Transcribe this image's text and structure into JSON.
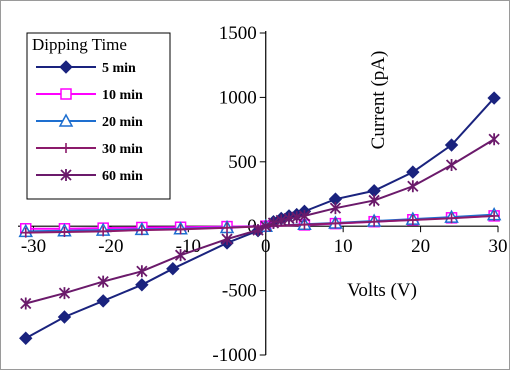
{
  "chart_data": {
    "type": "line",
    "xlabel": "Volts (V)",
    "ylabel": "Current (pA)",
    "xlim": [
      -32,
      30
    ],
    "ylim": [
      -1000,
      1500
    ],
    "x_ticks": [
      -30,
      -20,
      -10,
      0,
      10,
      20,
      30
    ],
    "y_ticks": [
      -1000,
      -500,
      0,
      500,
      1000,
      1500
    ],
    "x_tick_labels": [
      "-30",
      "-20",
      "-10",
      "0",
      "10",
      "20",
      "30"
    ],
    "y_tick_labels": [
      "-1000",
      "-500",
      "0",
      "500",
      "1000",
      "1500"
    ],
    "grid": false,
    "legend_title": "Dipping Time",
    "legend_position": "top-left",
    "series": [
      {
        "name": "5 min",
        "color": "#1a237e",
        "marker": "diamond",
        "x": [
          -31,
          -26,
          -21,
          -16,
          -12,
          -5,
          -1,
          0,
          1,
          2,
          3,
          4,
          5,
          9,
          14,
          19,
          24,
          29.5
        ],
        "y": [
          -870,
          -705,
          -580,
          -455,
          -330,
          -130,
          -35,
          0,
          35,
          60,
          80,
          90,
          115,
          210,
          275,
          420,
          630,
          995
        ]
      },
      {
        "name": "10 min",
        "color": "#ff00ff",
        "marker": "square",
        "x": [
          -31,
          -26,
          -21,
          -16,
          -11,
          -5,
          0,
          5,
          9,
          14,
          19,
          24,
          29.5
        ],
        "y": [
          -20,
          -20,
          -15,
          -10,
          -8,
          -3,
          0,
          10,
          20,
          35,
          50,
          65,
          80
        ]
      },
      {
        "name": "20 min",
        "color": "#1e6fd0",
        "marker": "triangle",
        "x": [
          -31,
          -26,
          -21,
          -16,
          -11,
          -5,
          0,
          5,
          9,
          14,
          19,
          24,
          29.5
        ],
        "y": [
          -40,
          -35,
          -30,
          -25,
          -20,
          -10,
          0,
          15,
          25,
          40,
          55,
          70,
          90
        ]
      },
      {
        "name": "30 min",
        "color": "#8b1a6b",
        "marker": "plus",
        "x": [
          -31,
          -26,
          -21,
          -16,
          -11,
          -5,
          0,
          5,
          9,
          14,
          19,
          24,
          29.5
        ],
        "y": [
          -50,
          -45,
          -40,
          -30,
          -25,
          -12,
          0,
          12,
          22,
          35,
          48,
          62,
          80
        ]
      },
      {
        "name": "60 min",
        "color": "#6b1a6b",
        "marker": "star",
        "x": [
          -31,
          -26,
          -21,
          -16,
          -11,
          -5,
          -1,
          0,
          1,
          2,
          3,
          4,
          5,
          9,
          14,
          19,
          24,
          29.5
        ],
        "y": [
          -600,
          -520,
          -430,
          -350,
          -225,
          -100,
          -30,
          0,
          25,
          45,
          60,
          70,
          80,
          140,
          200,
          310,
          475,
          675
        ]
      }
    ]
  }
}
